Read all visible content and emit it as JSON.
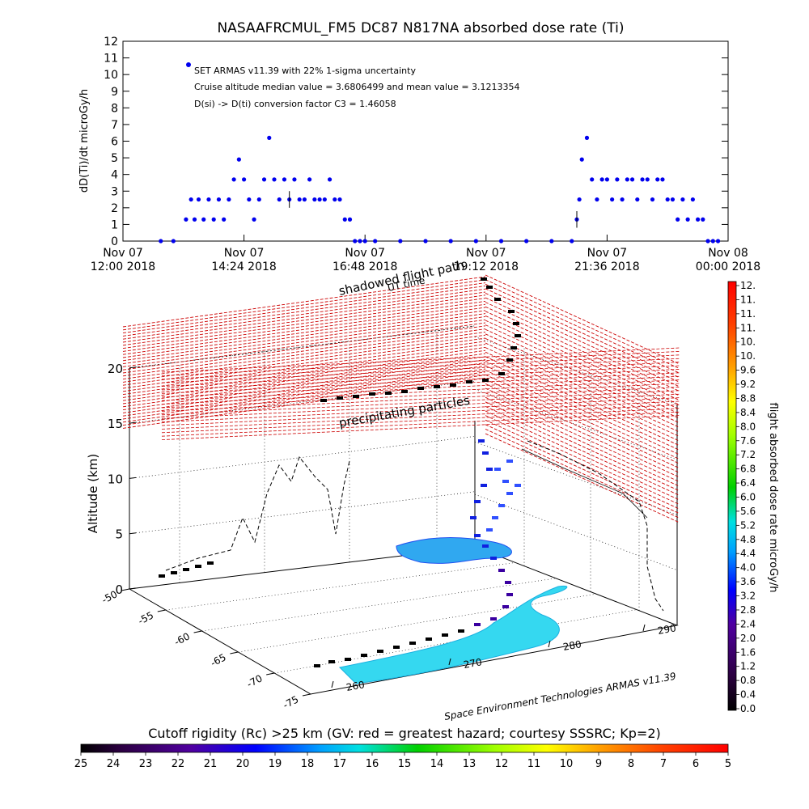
{
  "chart_data": [
    {
      "type": "scatter",
      "title": "NASAAFRCMUL_FM5 DC87 N817NA absorbed dose rate (Ti)",
      "ylabel": "dD(Ti)/dt microGy/h",
      "ylim": [
        0,
        12
      ],
      "yticks": [
        0,
        1,
        2,
        3,
        4,
        5,
        6,
        7,
        8,
        9,
        10,
        11,
        12
      ],
      "xlim": [
        12.0,
        24.0
      ],
      "xticks": [
        {
          "top": "Nov 07",
          "bottom": "12:00 2018"
        },
        {
          "top": "Nov 07",
          "bottom": "14:24 2018"
        },
        {
          "top": "Nov 07",
          "bottom": "16:48 2018"
        },
        {
          "top": "Nov 07",
          "bottom": "19:12 2018"
        },
        {
          "top": "Nov 07",
          "bottom": "21:36 2018"
        },
        {
          "top": "Nov 08",
          "bottom": "00:00 2018"
        }
      ],
      "legend_position": "top-left",
      "annotations": [
        "SET ARMAS v11.39 with 22% 1-sigma uncertainty",
        "Cruise altitude median value = 3.6806499 and mean value = 3.1213354",
        "D(si) -> D(ti) conversion factor C3 = 1.46058"
      ],
      "series": [
        {
          "name": "SET ARMAS v11.39 with 22% 1-sigma uncertainty",
          "color": "#0000ee",
          "x": [
            12.75,
            13.0,
            13.25,
            13.35,
            13.42,
            13.5,
            13.6,
            13.7,
            13.8,
            13.9,
            14.0,
            14.1,
            14.2,
            14.3,
            14.4,
            14.5,
            14.6,
            14.7,
            14.8,
            14.9,
            15.0,
            15.1,
            15.2,
            15.3,
            15.4,
            15.5,
            15.6,
            15.7,
            15.8,
            15.9,
            16.0,
            16.1,
            16.2,
            16.3,
            16.4,
            16.5,
            16.6,
            16.7,
            16.8,
            17.0,
            17.5,
            18.0,
            18.5,
            19.0,
            19.5,
            20.0,
            20.5,
            20.9,
            21.0,
            21.05,
            21.1,
            21.2,
            21.3,
            21.4,
            21.5,
            21.6,
            21.7,
            21.8,
            21.9,
            22.0,
            22.1,
            22.2,
            22.3,
            22.4,
            22.5,
            22.6,
            22.7,
            22.8,
            22.9,
            23.0,
            23.1,
            23.2,
            23.3,
            23.4,
            23.5,
            23.6,
            23.7,
            23.8
          ],
          "y": [
            0,
            0,
            1.3,
            2.5,
            1.3,
            2.5,
            1.3,
            2.5,
            1.3,
            2.5,
            1.3,
            2.5,
            3.7,
            4.9,
            3.7,
            2.5,
            1.3,
            2.5,
            3.7,
            6.2,
            3.7,
            2.5,
            3.7,
            2.5,
            3.7,
            2.5,
            2.5,
            3.7,
            2.5,
            2.5,
            2.5,
            3.7,
            2.5,
            2.5,
            1.3,
            1.3,
            0,
            0,
            0,
            0,
            0,
            0,
            0,
            0,
            0,
            0,
            0,
            0,
            1.3,
            2.5,
            4.9,
            6.2,
            3.7,
            2.5,
            3.7,
            3.7,
            2.5,
            3.7,
            2.5,
            3.7,
            3.7,
            2.5,
            3.7,
            3.7,
            2.5,
            3.7,
            3.7,
            2.5,
            2.5,
            1.3,
            2.5,
            1.3,
            2.5,
            1.3,
            1.3,
            0,
            0,
            0
          ]
        }
      ]
    },
    {
      "type": "scatter",
      "subtype": "3d-flight-track",
      "zlabel": "Altitude (km)",
      "zticks": [
        0,
        5,
        10,
        15,
        20
      ],
      "lat_ticks": [
        -50,
        -55,
        -60,
        -65,
        -70,
        -75
      ],
      "lon_ticks": [
        260,
        270,
        280,
        290
      ],
      "annotations": [
        "shadowed flight path",
        "UT time",
        "precipitating particles"
      ],
      "credit": "Space Environment Technologies ARMAS v11.39",
      "colorbar_right": {
        "label": "flight absorbed dose rate microGy/h",
        "ticks": [
          "0.0",
          "0.4",
          "0.8",
          "1.2",
          "1.6",
          "2.0",
          "2.4",
          "2.8",
          "3.2",
          "3.6",
          "4.0",
          "4.4",
          "4.8",
          "5.2",
          "5.6",
          "6.0",
          "6.4",
          "6.8",
          "7.2",
          "7.6",
          "8.0",
          "8.4",
          "8.8",
          "9.2",
          "9.6",
          "10.",
          "10.",
          "11.",
          "11.",
          "11.",
          "12."
        ]
      },
      "colorbar_bottom": {
        "label": "Cutoff rigidity (Rc) >25 km (GV: red = greatest hazard; courtesy SSSRC; Kp=2)",
        "ticks": [
          "25",
          "24",
          "23",
          "22",
          "21",
          "20",
          "19",
          "18",
          "17",
          "16",
          "15",
          "14",
          "13",
          "12",
          "11",
          "10",
          "9",
          "8",
          "7",
          "6",
          "5"
        ]
      }
    }
  ]
}
